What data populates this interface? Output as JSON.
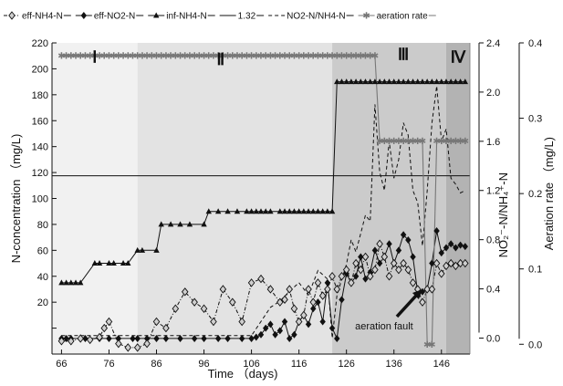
{
  "chart_data": {
    "type": "line",
    "xlabel": "Time （days)",
    "ylabel_left": "N-concentration （mg/L)",
    "ylabel_right1": "NO₂⁻-N/NH₄⁺-N",
    "ylabel_right2": "Aeration rate （mg/L)",
    "xlim": [
      64,
      152
    ],
    "ylim_left": [
      -20,
      220
    ],
    "ylim_right1": [
      -0.13,
      2.4
    ],
    "ylim_right2": [
      -0.013,
      0.4
    ],
    "x_ticks": [
      66,
      76,
      86,
      96,
      106,
      116,
      126,
      136,
      146
    ],
    "y_ticks_left": [
      0,
      20,
      40,
      60,
      80,
      100,
      120,
      140,
      160,
      180,
      200,
      220
    ],
    "y_ticks_left_labels": [
      "",
      "20",
      "40",
      "60",
      "80",
      "100",
      "120",
      "140",
      "160",
      "180",
      "200",
      "220"
    ],
    "y_ticks_right1": [
      0.0,
      0.4,
      0.8,
      1.2,
      1.6,
      2.0,
      2.4
    ],
    "y_ticks_right1_labels": [
      "0.0",
      "0.4",
      "0.8",
      "1.2",
      "1.6",
      "2.0",
      "2.4"
    ],
    "y_ticks_right2": [
      0.0,
      0.1,
      0.2,
      0.3,
      0.4
    ],
    "y_ticks_right2_labels": [
      "0.0",
      "0.1",
      "0.2",
      "0.3",
      "0.4"
    ],
    "phases": [
      {
        "label": "Ⅰ",
        "x_start": 64,
        "x_end": 82,
        "color": "#f1f1f1"
      },
      {
        "label": "Ⅱ",
        "x_start": 82,
        "x_end": 123,
        "color": "#e3e3e3"
      },
      {
        "label": "Ⅲ",
        "x_start": 123,
        "x_end": 147,
        "color": "#cbcbcb"
      },
      {
        "label": "Ⅳ",
        "x_start": 147,
        "x_end": 152,
        "color": "#b3b3b3"
      }
    ],
    "legend": [
      {
        "label": "eff-NH4-N",
        "line": "dashdot",
        "marker": "diamond-open"
      },
      {
        "label": "eff-NO2-N",
        "line": "solid",
        "marker": "diamond-filled"
      },
      {
        "label": "inf-NH4-N",
        "line": "solid",
        "marker": "triangle"
      },
      {
        "label": "1.32",
        "line": "solid",
        "marker": "none"
      },
      {
        "label": "NO2-N/NH4-N",
        "line": "dashed",
        "marker": "none"
      },
      {
        "label": "aeration rate",
        "line": "solid-gray",
        "marker": "asterisk"
      }
    ],
    "reference_line": {
      "label": "1.32",
      "y_right1": 1.32
    },
    "annotation": {
      "text": "aeration fault",
      "x": 142,
      "y": 30
    },
    "series": [
      {
        "name": "inf-NH4-N",
        "axis": "left",
        "style": "solid",
        "marker": "triangle",
        "color": "#111111",
        "x": [
          66,
          67,
          68,
          69,
          70,
          73,
          74,
          76,
          77,
          79,
          80,
          82,
          83,
          86,
          87,
          89,
          91,
          93,
          96,
          97,
          99,
          101,
          103,
          105,
          106,
          107,
          108,
          109,
          110,
          112,
          113,
          114,
          115,
          116,
          117,
          118,
          119,
          120,
          121,
          122,
          123,
          124,
          125,
          126,
          127,
          128,
          129,
          130,
          131,
          132,
          133,
          134,
          135,
          136,
          137,
          138,
          139,
          140,
          141,
          142,
          143,
          144,
          145,
          146,
          147,
          148,
          149,
          150,
          151
        ],
        "y": [
          35,
          35,
          35,
          35,
          35,
          50,
          50,
          50,
          50,
          50,
          50,
          60,
          60,
          60,
          80,
          80,
          80,
          80,
          80,
          90,
          90,
          90,
          90,
          90,
          90,
          90,
          90,
          90,
          90,
          90,
          90,
          90,
          90,
          90,
          90,
          90,
          90,
          90,
          90,
          90,
          90,
          190,
          190,
          190,
          190,
          190,
          190,
          190,
          190,
          190,
          190,
          190,
          190,
          190,
          190,
          190,
          190,
          190,
          190,
          190,
          190,
          190,
          190,
          190,
          190,
          190,
          190,
          190,
          190
        ]
      },
      {
        "name": "eff-NO2-N",
        "axis": "left",
        "style": "solid",
        "marker": "diamond-filled",
        "color": "#111111",
        "x": [
          66,
          67,
          68,
          70,
          71,
          74,
          76,
          78,
          81,
          82,
          84,
          86,
          88,
          91,
          94,
          96,
          99,
          101,
          104,
          106,
          107,
          108,
          109,
          110,
          111,
          112,
          113,
          114,
          115,
          116,
          117,
          118,
          119,
          120,
          121,
          122,
          123,
          124,
          125,
          126,
          127,
          128,
          129,
          130,
          131,
          132,
          133,
          134,
          135,
          136,
          137,
          138,
          139,
          140,
          141,
          142,
          143,
          144,
          145,
          146,
          147,
          148,
          149,
          150,
          151
        ],
        "y": [
          -8,
          -8,
          -8,
          -8,
          -8,
          -8,
          -8,
          -8,
          -8,
          -8,
          -8,
          -8,
          -8,
          -8,
          -8,
          -8,
          -8,
          -8,
          -8,
          -8,
          -7,
          -5,
          0,
          3,
          -5,
          -2,
          5,
          -8,
          -5,
          5,
          10,
          3,
          15,
          20,
          5,
          35,
          0,
          -8,
          22,
          42,
          35,
          40,
          55,
          38,
          43,
          60,
          50,
          55,
          65,
          50,
          60,
          72,
          68,
          55,
          27,
          28,
          30,
          50,
          75,
          58,
          62,
          65,
          62,
          64,
          63
        ]
      },
      {
        "name": "eff-NH4-N",
        "axis": "left",
        "style": "dashdot",
        "marker": "diamond-open",
        "color": "#111111",
        "x": [
          66,
          68,
          70,
          72,
          74,
          75,
          76,
          78,
          80,
          82,
          84,
          86,
          88,
          90,
          92,
          94,
          96,
          98,
          100,
          102,
          104,
          106,
          108,
          110,
          112,
          113,
          114,
          115,
          116,
          117,
          118,
          119,
          120,
          121,
          122,
          123,
          124,
          125,
          126,
          127,
          128,
          129,
          130,
          131,
          132,
          133,
          134,
          135,
          136,
          137,
          138,
          139,
          140,
          141,
          142,
          143,
          144,
          145,
          146,
          147,
          148,
          149,
          150,
          151
        ],
        "y": [
          -10,
          -10,
          -8,
          -9,
          -7,
          0,
          5,
          -12,
          -15,
          -15,
          -12,
          5,
          0,
          15,
          28,
          20,
          15,
          5,
          30,
          20,
          5,
          35,
          38,
          30,
          20,
          22,
          30,
          15,
          5,
          10,
          30,
          20,
          35,
          25,
          30,
          40,
          30,
          40,
          45,
          35,
          50,
          45,
          55,
          40,
          45,
          65,
          55,
          40,
          50,
          45,
          50,
          45,
          35,
          30,
          20,
          30,
          30,
          50,
          42,
          48,
          50,
          48,
          50,
          50
        ]
      },
      {
        "name": "NO2-N/NH4-N",
        "axis": "right1",
        "style": "dashed",
        "color": "#111111",
        "x": [
          66,
          76,
          82,
          86,
          96,
          106,
          110,
          112,
          114,
          116,
          118,
          120,
          122,
          123,
          124,
          126,
          127,
          128,
          130,
          131,
          132,
          133,
          134,
          135,
          136,
          137,
          138,
          139,
          140,
          141,
          142,
          143,
          144,
          145,
          146,
          147,
          148,
          149,
          150,
          151
        ],
        "y": [
          0.02,
          0.02,
          0.02,
          0.02,
          0.02,
          0.02,
          0.25,
          0.3,
          0.38,
          0.45,
          0.35,
          0.55,
          0.48,
          0.0,
          0.35,
          0.6,
          0.8,
          0.7,
          1.0,
          0.95,
          1.9,
          1.35,
          1.2,
          1.6,
          1.3,
          1.45,
          1.75,
          1.65,
          1.2,
          1.1,
          0.75,
          1.2,
          1.75,
          2.05,
          1.6,
          1.7,
          1.3,
          1.25,
          1.18,
          1.2
        ]
      },
      {
        "name": "aeration rate",
        "axis": "right2",
        "style": "solid-gray",
        "marker": "asterisk",
        "color": "#777777",
        "x": [
          66,
          67,
          68,
          69,
          70,
          71,
          72,
          73,
          74,
          75,
          76,
          77,
          78,
          79,
          80,
          81,
          82,
          83,
          84,
          85,
          86,
          87,
          88,
          89,
          90,
          91,
          92,
          93,
          94,
          95,
          96,
          97,
          98,
          99,
          100,
          101,
          102,
          103,
          104,
          105,
          106,
          107,
          108,
          109,
          110,
          111,
          112,
          113,
          114,
          115,
          116,
          117,
          118,
          119,
          120,
          121,
          122,
          123,
          124,
          125,
          126,
          127,
          128,
          129,
          130,
          131,
          132,
          133,
          134,
          135,
          136,
          137,
          138,
          139,
          140,
          141,
          142,
          143,
          144,
          145,
          146,
          147,
          148,
          149,
          150,
          151
        ],
        "y": [
          0.383,
          0.383,
          0.383,
          0.383,
          0.383,
          0.383,
          0.383,
          0.383,
          0.383,
          0.383,
          0.383,
          0.383,
          0.383,
          0.383,
          0.383,
          0.383,
          0.383,
          0.383,
          0.383,
          0.383,
          0.383,
          0.383,
          0.383,
          0.383,
          0.383,
          0.383,
          0.383,
          0.383,
          0.383,
          0.383,
          0.383,
          0.383,
          0.383,
          0.383,
          0.383,
          0.383,
          0.383,
          0.383,
          0.383,
          0.383,
          0.383,
          0.383,
          0.383,
          0.383,
          0.383,
          0.383,
          0.383,
          0.383,
          0.383,
          0.383,
          0.383,
          0.383,
          0.383,
          0.383,
          0.383,
          0.383,
          0.383,
          0.383,
          0.383,
          0.383,
          0.383,
          0.383,
          0.383,
          0.383,
          0.383,
          0.383,
          0.383,
          0.27,
          0.27,
          0.27,
          0.27,
          0.27,
          0.27,
          0.27,
          0.27,
          0.27,
          0.27,
          0.0,
          0.0,
          0.27,
          0.27,
          0.27,
          0.27,
          0.27,
          0.27,
          0.27
        ]
      }
    ]
  }
}
